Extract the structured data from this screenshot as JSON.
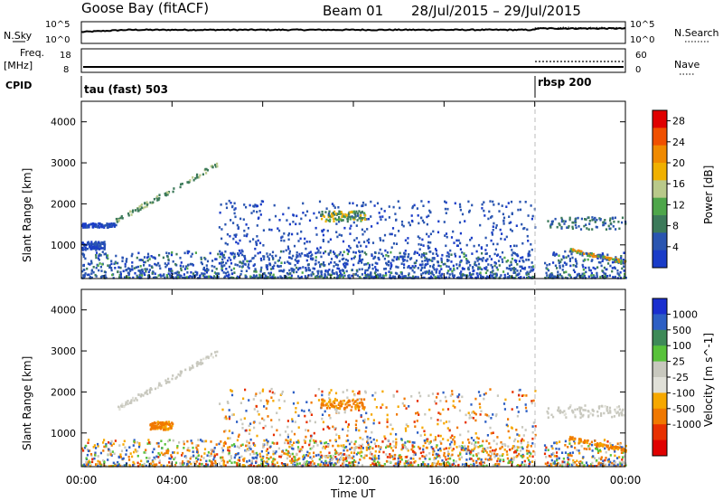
{
  "header": {
    "station": "Goose Bay (fitACF)",
    "beam": "Beam 01",
    "dates": "28/Jul/2015 – 29/Jul/2015"
  },
  "labels": {
    "nsky": "N.Sky",
    "nsearch": "N.Search",
    "freq_top": "Freq.",
    "freq_unit": "[MHz]",
    "nave": "Nave",
    "cpid": "CPID",
    "scale_hi": "10^5",
    "scale_lo": "10^0"
  },
  "cpid_segments": [
    {
      "label": "tau (fast) 503",
      "start": "00:00"
    },
    {
      "label": "rbsp 200",
      "start": "20:00"
    }
  ],
  "freq_axis": {
    "left_ticks": [
      "18",
      "8"
    ],
    "right_ticks": [
      "60",
      "0"
    ]
  },
  "colors": {
    "power": [
      "#1a3cc8",
      "#2a55b0",
      "#3c7a5a",
      "#4ea64a",
      "#b9c98a",
      "#f0b000",
      "#f08a00",
      "#f05000",
      "#e00000"
    ],
    "velocity": [
      "#1a2fcf",
      "#2d5fc4",
      "#3e8a58",
      "#58c23a",
      "#c8c8be",
      "#e0e0d8",
      "#f6a800",
      "#f07800",
      "#e83000",
      "#e00000"
    ]
  },
  "chart_data": [
    {
      "type": "heatmap",
      "title": "Power",
      "ylabel": "Slant Range [km]",
      "ylim": [
        180,
        4500
      ],
      "yticks": [
        1000,
        2000,
        3000,
        4000
      ],
      "xlabel": "Time UT",
      "xticks": [
        "00:00",
        "04:00",
        "08:00",
        "12:00",
        "16:00",
        "20:00",
        "00:00"
      ],
      "colorbar": {
        "label": "Power [dB]",
        "ticks": [
          4,
          8,
          12,
          16,
          20,
          24,
          28
        ],
        "range": [
          0,
          30
        ]
      },
      "features": [
        {
          "t_start_h": 0.0,
          "t_end_h": 24.0,
          "range_km": [
            200,
            450
          ],
          "description": "persistent near-range ground scatter band"
        },
        {
          "t_start_h": 0.0,
          "t_end_h": 1.5,
          "range_km": [
            1450,
            1550
          ],
          "description": "band ~1500 km"
        },
        {
          "t_start_h": 0.0,
          "t_end_h": 1.0,
          "range_km": [
            900,
            1100
          ],
          "description": "patch ~1000 km"
        },
        {
          "t_start_h": 1.5,
          "t_end_h": 6.0,
          "range_km": [
            1600,
            3000
          ],
          "description": "rising echo band"
        },
        {
          "t_start_h": 10.5,
          "t_end_h": 12.5,
          "range_km": [
            1600,
            1850
          ],
          "description": "patch ~1750 km"
        },
        {
          "t_start_h": 20.5,
          "t_end_h": 24.0,
          "range_km": [
            1400,
            1700
          ],
          "description": "band ~1500 km"
        },
        {
          "t_start_h": 21.5,
          "t_end_h": 24.0,
          "range_km": [
            600,
            900
          ],
          "description": "descending band ~800 km"
        }
      ]
    },
    {
      "type": "heatmap",
      "title": "Velocity",
      "ylabel": "Slant Range [km]",
      "ylim": [
        180,
        4500
      ],
      "yticks": [
        1000,
        2000,
        3000,
        4000
      ],
      "xlabel": "Time UT",
      "xticks": [
        "00:00",
        "04:00",
        "08:00",
        "12:00",
        "16:00",
        "20:00",
        "00:00"
      ],
      "colorbar": {
        "label": "Velocity [m s^-1]",
        "ticks": [
          "1000",
          "500",
          "100",
          "25",
          "-25",
          "-100",
          "-500",
          "-1000"
        ]
      },
      "features": [
        {
          "t_start_h": 0.0,
          "t_end_h": 1.5,
          "range_km": [
            900,
            1100
          ],
          "description": "orange (negative) patch"
        },
        {
          "t_start_h": 3.0,
          "t_end_h": 4.0,
          "range_km": [
            1100,
            1300
          ],
          "description": "orange patch"
        },
        {
          "t_start_h": 1.5,
          "t_end_h": 6.0,
          "range_km": [
            1600,
            3000
          ],
          "description": "grey (low velocity) rising band"
        },
        {
          "t_start_h": 10.5,
          "t_end_h": 12.5,
          "range_km": [
            1600,
            1850
          ],
          "description": "orange patch"
        },
        {
          "t_start_h": 20.5,
          "t_end_h": 24.0,
          "range_km": [
            1400,
            1700
          ],
          "description": "grey band"
        },
        {
          "t_start_h": 21.5,
          "t_end_h": 24.0,
          "range_km": [
            600,
            900
          ],
          "description": "orange descending band"
        }
      ]
    }
  ]
}
